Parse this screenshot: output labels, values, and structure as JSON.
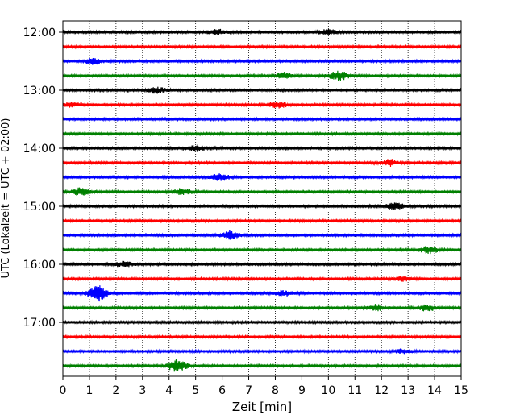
{
  "chart_data": {
    "type": "line",
    "title": "",
    "xlabel": "Zeit  [min]",
    "ylabel": "UTC (Lokalzeit = UTC + 02:00)",
    "xlim": [
      0,
      15
    ],
    "x_ticks": [
      0,
      1,
      2,
      3,
      4,
      5,
      6,
      7,
      8,
      9,
      10,
      11,
      12,
      13,
      14,
      15
    ],
    "y_tick_labels": [
      "12:00",
      "13:00",
      "14:00",
      "15:00",
      "16:00",
      "17:00"
    ],
    "grid": "vertical dotted lines at each minute",
    "colors": [
      "#000000",
      "#ff0000",
      "#0000ff",
      "#008000"
    ],
    "trace_rows": [
      {
        "start": "12:00",
        "color": "#000000",
        "events": [
          {
            "x": 5.8,
            "amp": 0.5
          },
          {
            "x": 10.0,
            "amp": 0.5
          }
        ]
      },
      {
        "start": "12:15",
        "color": "#ff0000",
        "events": []
      },
      {
        "start": "12:30",
        "color": "#0000ff",
        "events": [
          {
            "x": 1.2,
            "amp": 0.6
          }
        ]
      },
      {
        "start": "12:45",
        "color": "#008000",
        "events": [
          {
            "x": 8.3,
            "amp": 0.6
          },
          {
            "x": 10.4,
            "amp": 0.9
          }
        ]
      },
      {
        "start": "13:00",
        "color": "#000000",
        "events": [
          {
            "x": 3.5,
            "amp": 0.6
          }
        ]
      },
      {
        "start": "13:15",
        "color": "#ff0000",
        "events": [
          {
            "x": 0.3,
            "amp": 0.4
          },
          {
            "x": 8.1,
            "amp": 0.6
          }
        ]
      },
      {
        "start": "13:30",
        "color": "#0000ff",
        "events": []
      },
      {
        "start": "13:45",
        "color": "#008000",
        "events": []
      },
      {
        "start": "14:00",
        "color": "#000000",
        "events": [
          {
            "x": 5.0,
            "amp": 0.6
          }
        ]
      },
      {
        "start": "14:15",
        "color": "#ff0000",
        "events": [
          {
            "x": 12.3,
            "amp": 0.6
          }
        ]
      },
      {
        "start": "14:30",
        "color": "#0000ff",
        "events": [
          {
            "x": 5.9,
            "amp": 0.7
          }
        ]
      },
      {
        "start": "14:45",
        "color": "#008000",
        "events": [
          {
            "x": 0.7,
            "amp": 0.7
          },
          {
            "x": 4.5,
            "amp": 0.6
          }
        ]
      },
      {
        "start": "15:00",
        "color": "#000000",
        "events": [
          {
            "x": 12.5,
            "amp": 0.7
          }
        ]
      },
      {
        "start": "15:15",
        "color": "#ff0000",
        "events": []
      },
      {
        "start": "15:30",
        "color": "#0000ff",
        "events": [
          {
            "x": 6.3,
            "amp": 0.8
          }
        ]
      },
      {
        "start": "15:45",
        "color": "#008000",
        "events": [
          {
            "x": 13.8,
            "amp": 0.7
          }
        ]
      },
      {
        "start": "16:00",
        "color": "#000000",
        "events": [
          {
            "x": 2.3,
            "amp": 0.5
          }
        ]
      },
      {
        "start": "16:15",
        "color": "#ff0000",
        "events": [
          {
            "x": 12.8,
            "amp": 0.5
          }
        ]
      },
      {
        "start": "16:30",
        "color": "#0000ff",
        "events": [
          {
            "x": 1.3,
            "amp": 1.6
          },
          {
            "x": 8.3,
            "amp": 0.5
          }
        ]
      },
      {
        "start": "16:45",
        "color": "#008000",
        "events": [
          {
            "x": 11.8,
            "amp": 0.6
          },
          {
            "x": 13.7,
            "amp": 0.6
          }
        ]
      },
      {
        "start": "17:00",
        "color": "#000000",
        "events": []
      },
      {
        "start": "17:15",
        "color": "#ff0000",
        "events": []
      },
      {
        "start": "17:30",
        "color": "#0000ff",
        "events": [
          {
            "x": 12.8,
            "amp": 0.4
          }
        ]
      },
      {
        "start": "17:45",
        "color": "#008000",
        "events": [
          {
            "x": 4.3,
            "amp": 1.2
          }
        ]
      }
    ]
  }
}
